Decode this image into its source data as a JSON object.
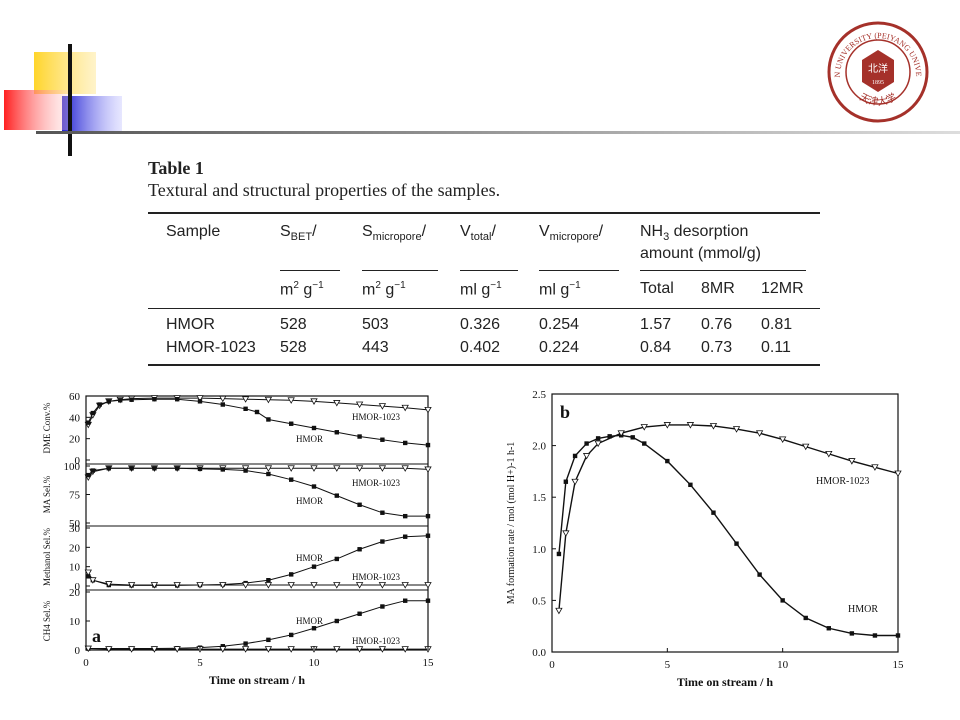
{
  "logo": {
    "ring_text": "TIANJIN UNIVERSITY (PEIYANG UNIVERSITY)",
    "inner_text": "北洋",
    "year": "1895",
    "bottom_text": "天津大学",
    "color": "#a5312a"
  },
  "table": {
    "title": "Table 1",
    "caption": "Textural and structural properties of the samples.",
    "headers": {
      "sample": "Sample",
      "sbet": "S",
      "sbet_sub": "BET",
      "smicro": "S",
      "smicro_sub": "micropore",
      "vtotal": "V",
      "vtotal_sub": "total",
      "vmicro": "V",
      "vmicro_sub": "micropore",
      "nh3_line1": "NH",
      "nh3_sub": "3",
      "nh3_rest": " desorption",
      "nh3_line2": "amount (mmol/g)"
    },
    "units": {
      "sbet": "m",
      "smicro": "m",
      "vtotal": "ml g",
      "vmicro": "ml g",
      "total": "Total",
      "mr8": "8MR",
      "mr12": "12MR"
    },
    "rows": [
      [
        "HMOR",
        "528",
        "503",
        "0.326",
        "0.254",
        "1.57",
        "0.76",
        "0.81"
      ],
      [
        "HMOR-1023",
        "528",
        "443",
        "0.402",
        "0.224",
        "0.84",
        "0.73",
        "0.11"
      ]
    ]
  },
  "chart_data": [
    {
      "type": "line",
      "panel_label": "a",
      "xlabel": "Time on stream / h",
      "xlim": [
        0,
        15
      ],
      "xticks": [
        0,
        5,
        10,
        15
      ],
      "subplots": [
        {
          "ylabel": "DME Conv.%",
          "ylim": [
            0,
            60
          ],
          "yticks": [
            0,
            20,
            40,
            60
          ],
          "series": [
            {
              "name": "HMOR-1023",
              "x": [
                0.1,
                0.3,
                0.6,
                1,
                1.5,
                2,
                3,
                4,
                5,
                6,
                7,
                8,
                9,
                10,
                11,
                12,
                13,
                14,
                15
              ],
              "y": [
                33,
                42,
                51,
                55,
                56.5,
                57.5,
                58,
                58,
                58,
                57.5,
                57,
                56.5,
                56,
                55,
                53.5,
                52,
                50.5,
                49,
                47
              ]
            },
            {
              "name": "HMOR",
              "x": [
                0.1,
                0.3,
                0.6,
                1,
                1.5,
                2,
                3,
                4,
                5,
                6,
                7,
                7.5,
                8,
                9,
                10,
                11,
                12,
                13,
                14,
                15
              ],
              "y": [
                35,
                44,
                52,
                55,
                56,
                56.5,
                57,
                57,
                55,
                52,
                48,
                45,
                38,
                34,
                30,
                26,
                22,
                19,
                16,
                14
              ]
            }
          ]
        },
        {
          "ylabel": "MA Sel.%",
          "ylim": [
            50,
            100
          ],
          "yticks": [
            50,
            75,
            100
          ],
          "series": [
            {
              "name": "HMOR-1023",
              "x": [
                0.1,
                0.3,
                1,
                2,
                3,
                4,
                5,
                6,
                7,
                8,
                9,
                10,
                11,
                12,
                13,
                14,
                15
              ],
              "y": [
                90,
                95,
                98,
                98,
                98,
                98,
                98,
                98,
                98,
                98,
                98,
                98,
                98,
                98,
                98,
                98,
                97
              ]
            },
            {
              "name": "HMOR",
              "x": [
                0.1,
                0.3,
                1,
                2,
                3,
                4,
                5,
                6,
                7,
                8,
                9,
                10,
                11,
                12,
                13,
                14,
                15
              ],
              "y": [
                92,
                96,
                98,
                98,
                98,
                98,
                97.5,
                97,
                96,
                93,
                88,
                82,
                74,
                66,
                59,
                56,
                56
              ]
            }
          ]
        },
        {
          "ylabel": "Methanol Sel.%",
          "ylim": [
            0,
            30
          ],
          "yticks": [
            0,
            10,
            20,
            30
          ],
          "series": [
            {
              "name": "HMOR",
              "x": [
                0.1,
                0.3,
                1,
                2,
                3,
                4,
                5,
                6,
                7,
                8,
                9,
                10,
                11,
                12,
                13,
                14,
                15
              ],
              "y": [
                5,
                3,
                0.5,
                0.3,
                0.3,
                0.3,
                0.5,
                0.8,
                1.5,
                3,
                6,
                10,
                14,
                19,
                23,
                25.5,
                26
              ]
            },
            {
              "name": "HMOR-1023",
              "x": [
                0.1,
                0.3,
                1,
                2,
                3,
                4,
                5,
                6,
                7,
                8,
                9,
                10,
                11,
                12,
                13,
                14,
                15
              ],
              "y": [
                7,
                3,
                1,
                0.5,
                0.5,
                0.5,
                0.5,
                0.5,
                0.5,
                0.5,
                0.5,
                0.5,
                0.5,
                0.5,
                0.5,
                0.5,
                0.5
              ]
            }
          ]
        },
        {
          "ylabel": "CH4 Sel.%",
          "ylim": [
            0,
            20
          ],
          "yticks": [
            0,
            10,
            20
          ],
          "series": [
            {
              "name": "HMOR",
              "x": [
                0.1,
                1,
                2,
                3,
                4,
                5,
                6,
                7,
                8,
                9,
                10,
                11,
                12,
                13,
                14,
                15
              ],
              "y": [
                0.5,
                0.5,
                0.5,
                0.5,
                0.6,
                0.8,
                1.3,
                2.2,
                3.5,
                5.2,
                7.5,
                10,
                12.5,
                15,
                17,
                17
              ]
            },
            {
              "name": "HMOR-1023",
              "x": [
                0.1,
                1,
                2,
                3,
                4,
                5,
                6,
                7,
                8,
                9,
                10,
                11,
                12,
                13,
                14,
                15
              ],
              "y": [
                0.5,
                0.3,
                0.3,
                0.3,
                0.3,
                0.3,
                0.3,
                0.3,
                0.3,
                0.3,
                0.3,
                0.3,
                0.3,
                0.3,
                0.3,
                0.3
              ]
            }
          ]
        }
      ]
    },
    {
      "type": "line",
      "panel_label": "b",
      "xlabel": "Time on stream / h",
      "ylabel": "MA  formation rate / mol (mol H+)-1 h-1",
      "xlim": [
        0,
        15
      ],
      "ylim": [
        0,
        2.5
      ],
      "xticks": [
        0,
        5,
        10,
        15
      ],
      "yticks": [
        0,
        0.5,
        1.0,
        1.5,
        2.0,
        2.5
      ],
      "series": [
        {
          "name": "HMOR",
          "x": [
            0.3,
            0.6,
            1,
            1.5,
            2,
            2.5,
            3,
            3.5,
            4,
            5,
            6,
            7,
            8,
            9,
            10,
            11,
            12,
            13,
            14,
            15
          ],
          "y": [
            0.95,
            1.65,
            1.9,
            2.02,
            2.07,
            2.09,
            2.1,
            2.08,
            2.02,
            1.85,
            1.62,
            1.35,
            1.05,
            0.75,
            0.5,
            0.33,
            0.23,
            0.18,
            0.16,
            0.16
          ]
        },
        {
          "name": "HMOR-1023",
          "x": [
            0.3,
            0.6,
            1,
            1.5,
            2,
            3,
            4,
            5,
            6,
            7,
            8,
            9,
            10,
            11,
            12,
            13,
            14,
            15
          ],
          "y": [
            0.4,
            1.15,
            1.65,
            1.9,
            2.02,
            2.12,
            2.18,
            2.2,
            2.2,
            2.19,
            2.16,
            2.12,
            2.06,
            1.99,
            1.92,
            1.85,
            1.79,
            1.73
          ]
        }
      ]
    }
  ]
}
